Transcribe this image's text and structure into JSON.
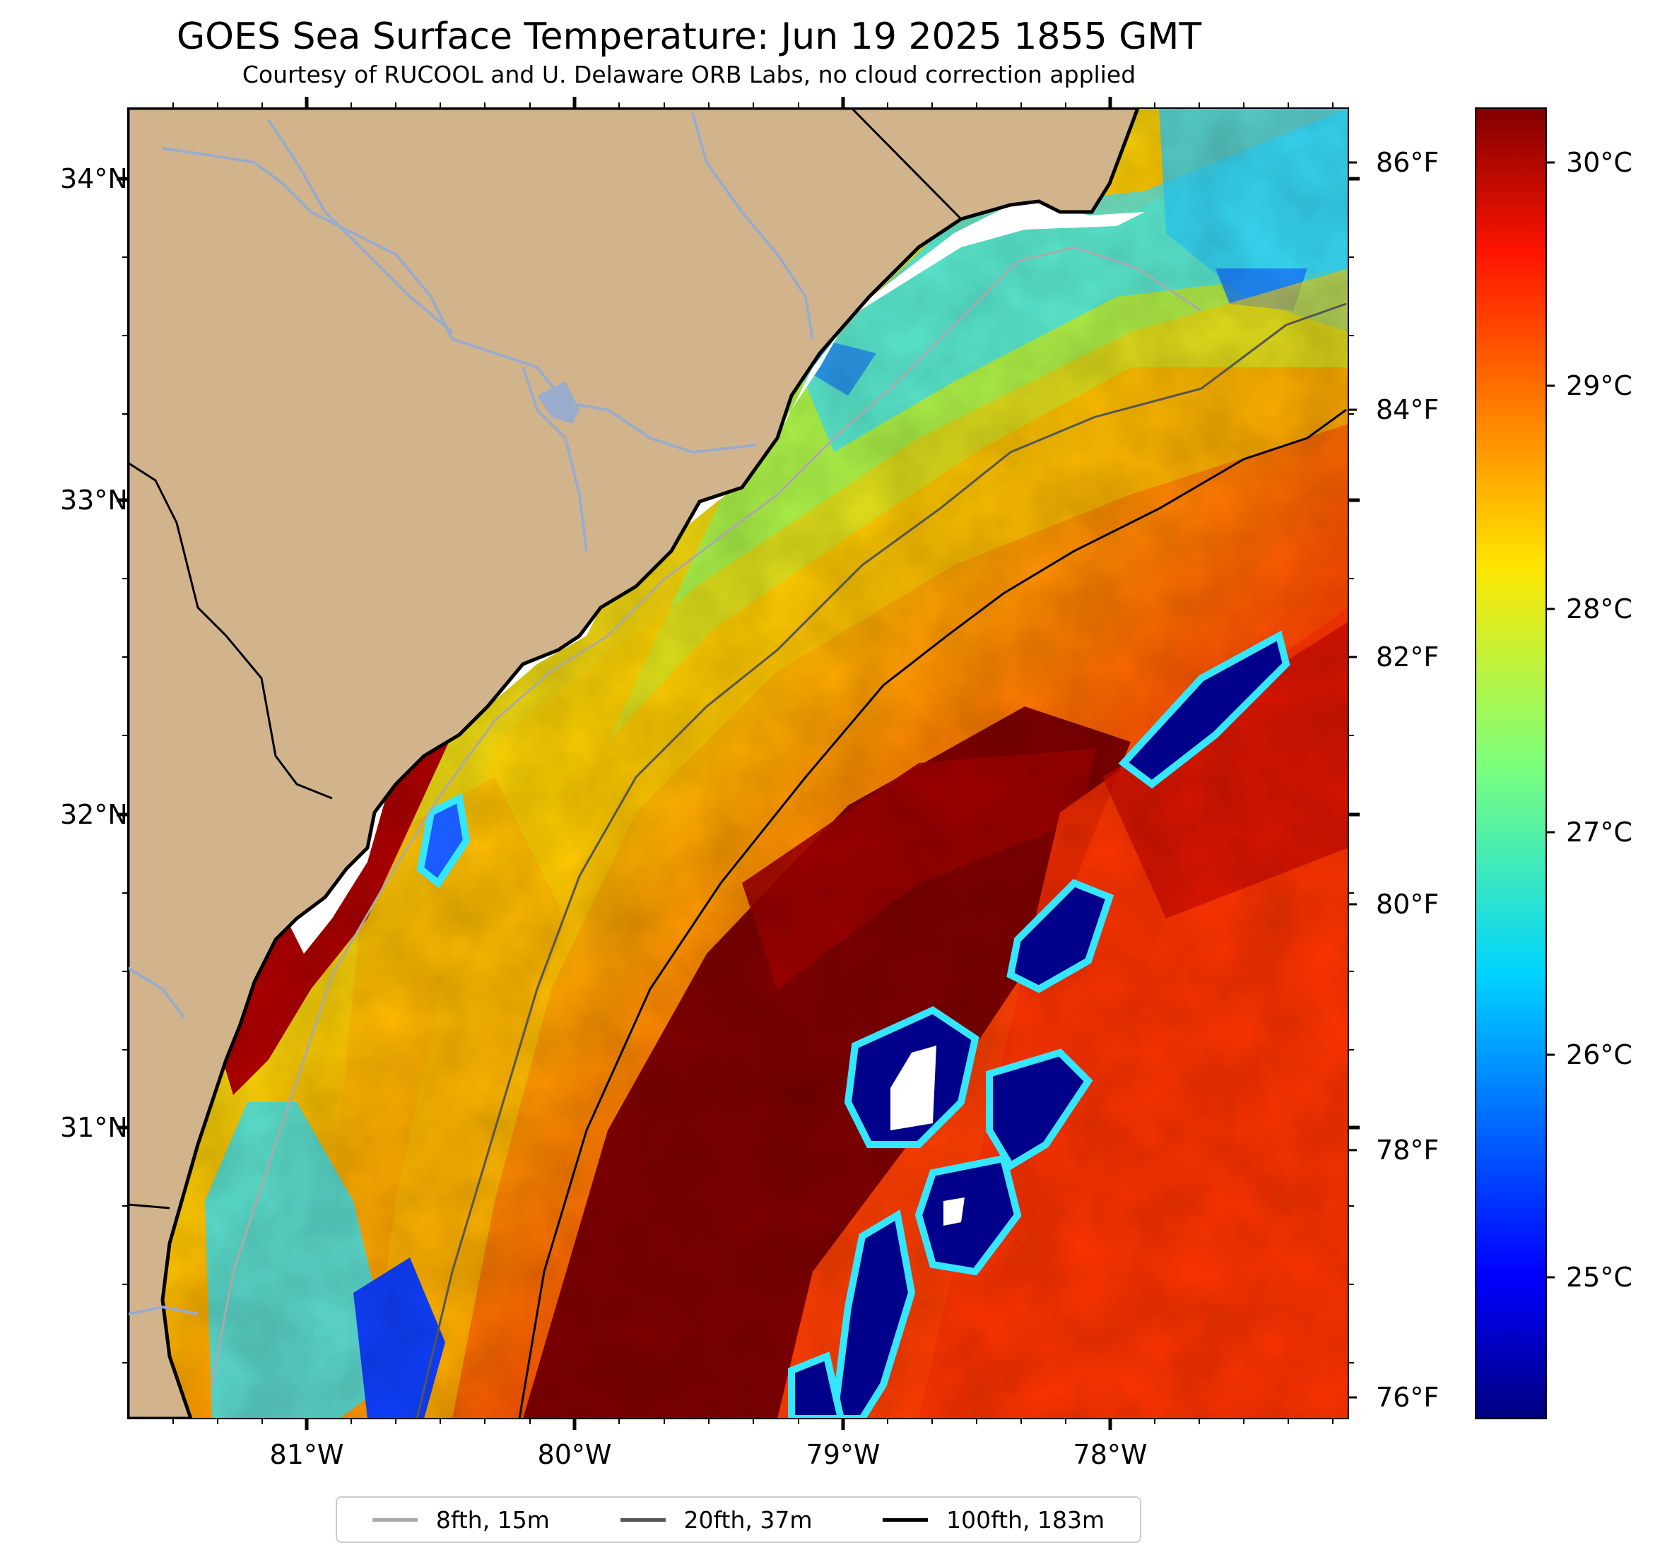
{
  "title": "GOES Sea Surface Temperature: Jun 19 2025 1855 GMT",
  "subtitle": "Courtesy of RUCOOL and U. Delaware ORB Labs, no cloud correction applied",
  "map": {
    "lat_ticks": [
      "34°N",
      "33°N",
      "32°N",
      "31°N"
    ],
    "lon_ticks": [
      "81°W",
      "80°W",
      "79°W",
      "78°W"
    ],
    "fahrenheit_ticks": [
      "86°F",
      "84°F",
      "82°F",
      "80°F",
      "78°F",
      "76°F"
    ],
    "extent": {
      "lon_min": -81.67,
      "lon_max": -77.12,
      "lat_min": 30.08,
      "lat_max": 34.22
    },
    "colors": {
      "land": "#d2b48c",
      "coastline": "#000000",
      "rivers": "#9aaccc"
    }
  },
  "colorbar": {
    "labels": [
      "30°C",
      "29°C",
      "28°C",
      "27°C",
      "26°C",
      "25°C"
    ],
    "range_c": [
      24.5,
      30.2
    ],
    "colormap": "jet"
  },
  "legend": [
    {
      "label": "8fth, 15m",
      "color": "#aaaaaa"
    },
    {
      "label": "20fth, 37m",
      "color": "#555555"
    },
    {
      "label": "100fth, 183m",
      "color": "#000000"
    }
  ]
}
